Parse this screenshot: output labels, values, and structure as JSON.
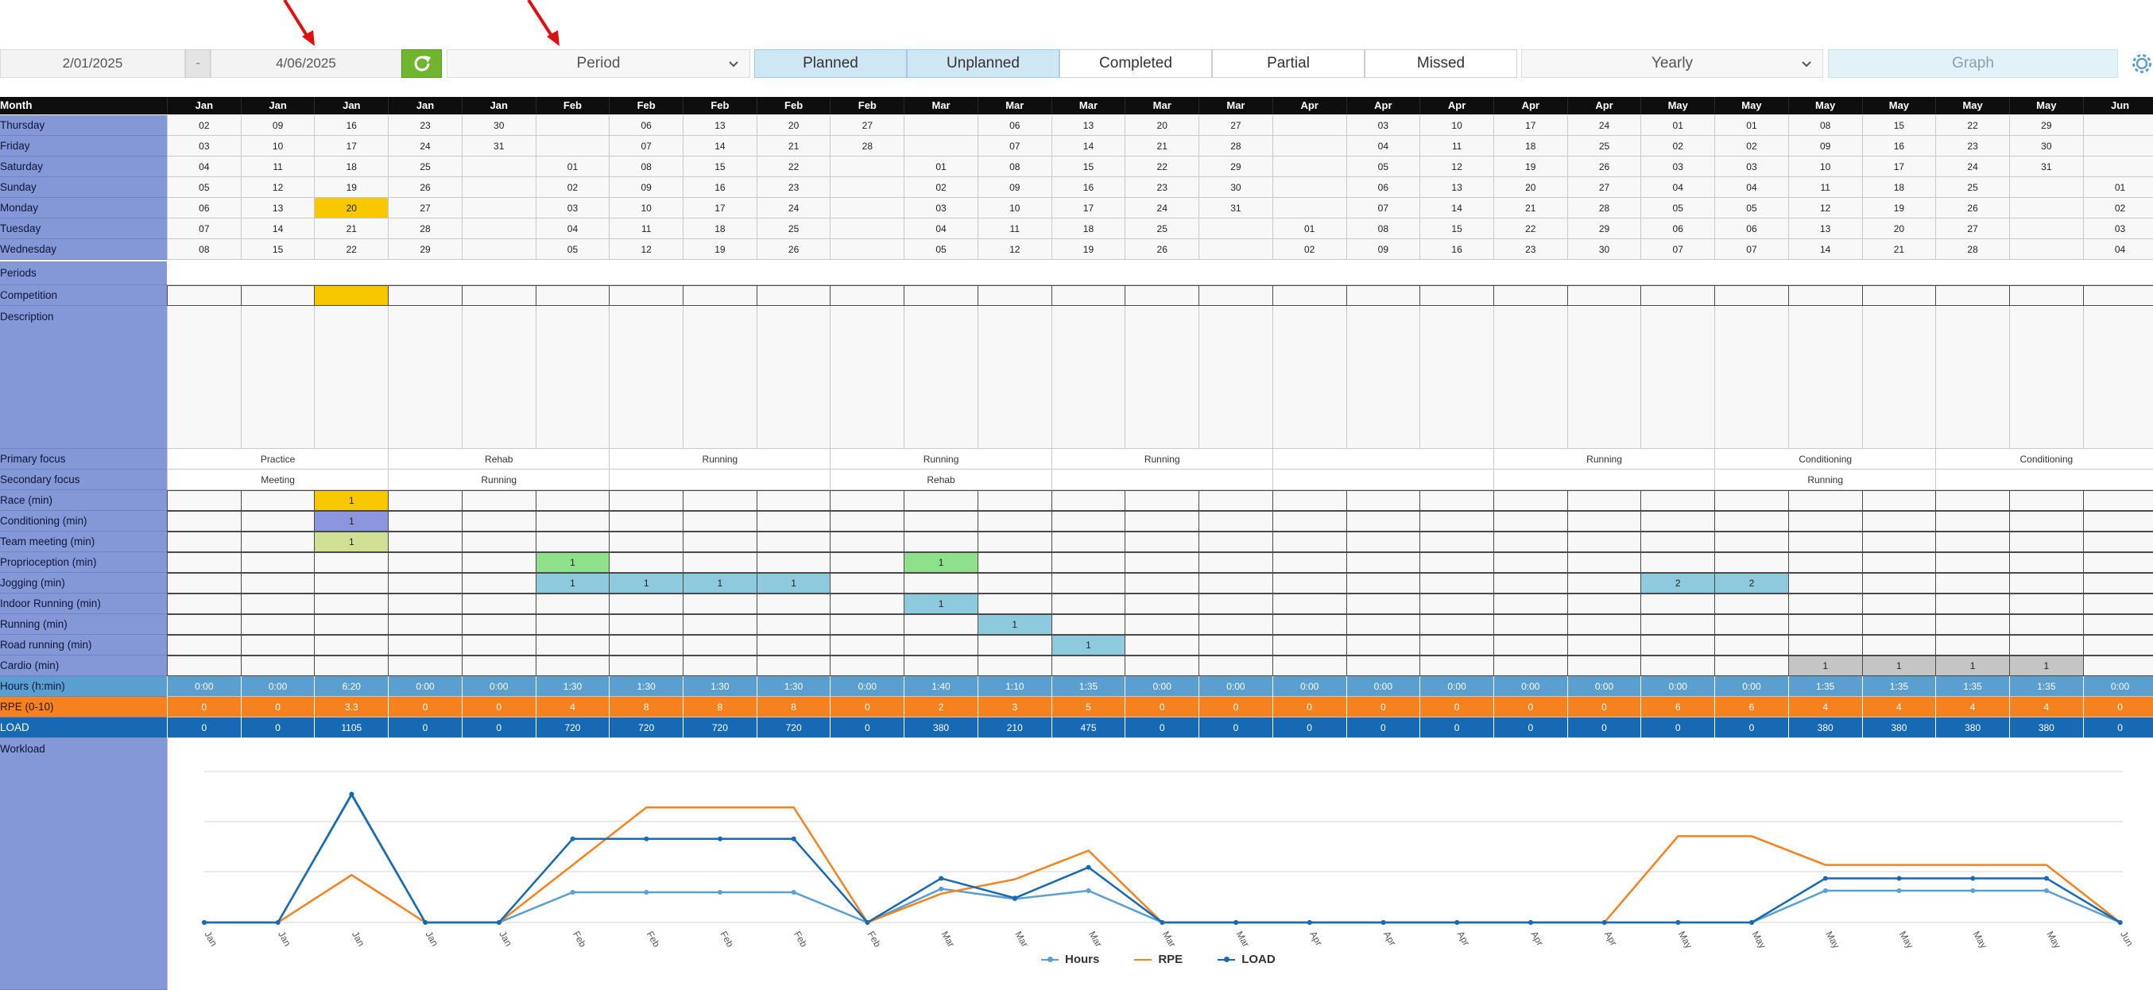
{
  "toolbar": {
    "start_date": "2/01/2025",
    "separator": "-",
    "end_date": "4/06/2025",
    "period_select": "Period",
    "filters": [
      {
        "label": "Planned",
        "active": true
      },
      {
        "label": "Unplanned",
        "active": true
      },
      {
        "label": "Completed",
        "active": false
      },
      {
        "label": "Partial",
        "active": false
      },
      {
        "label": "Missed",
        "active": false
      }
    ],
    "view_select": "Yearly",
    "graph_button": "Graph",
    "icons": [
      "refresh-icon",
      "chevron-down-icon",
      "gear-icon",
      "red-arrow-annotation"
    ]
  },
  "grid": {
    "month_label": "Month",
    "months": [
      "Jan",
      "Jan",
      "Jan",
      "Jan",
      "Jan",
      "Feb",
      "Feb",
      "Feb",
      "Feb",
      "Feb",
      "Mar",
      "Mar",
      "Mar",
      "Mar",
      "Mar",
      "Apr",
      "Apr",
      "Apr",
      "Apr",
      "Apr",
      "May",
      "May",
      "May",
      "May",
      "May",
      "May",
      "Jun"
    ],
    "day_rows": [
      {
        "label": "Thursday",
        "values": [
          "02",
          "09",
          "16",
          "23",
          "30",
          "",
          "06",
          "13",
          "20",
          "27",
          "",
          "06",
          "13",
          "20",
          "27",
          "",
          "03",
          "10",
          "17",
          "24",
          "01",
          "01",
          "08",
          "15",
          "22",
          "29",
          ""
        ]
      },
      {
        "label": "Friday",
        "values": [
          "03",
          "10",
          "17",
          "24",
          "31",
          "",
          "07",
          "14",
          "21",
          "28",
          "",
          "07",
          "14",
          "21",
          "28",
          "",
          "04",
          "11",
          "18",
          "25",
          "02",
          "02",
          "09",
          "16",
          "23",
          "30",
          ""
        ]
      },
      {
        "label": "Saturday",
        "values": [
          "04",
          "11",
          "18",
          "25",
          "",
          "01",
          "08",
          "15",
          "22",
          "",
          "01",
          "08",
          "15",
          "22",
          "29",
          "",
          "05",
          "12",
          "19",
          "26",
          "03",
          "03",
          "10",
          "17",
          "24",
          "31",
          ""
        ]
      },
      {
        "label": "Sunday",
        "values": [
          "05",
          "12",
          "19",
          "26",
          "",
          "02",
          "09",
          "16",
          "23",
          "",
          "02",
          "09",
          "16",
          "23",
          "30",
          "",
          "06",
          "13",
          "20",
          "27",
          "04",
          "04",
          "11",
          "18",
          "25",
          "",
          "01"
        ]
      },
      {
        "label": "Monday",
        "values": [
          "06",
          "13",
          "20",
          "27",
          "",
          "03",
          "10",
          "17",
          "24",
          "",
          "03",
          "10",
          "17",
          "24",
          "31",
          "",
          "07",
          "14",
          "21",
          "28",
          "05",
          "05",
          "12",
          "19",
          "26",
          "",
          "02"
        ]
      },
      {
        "label": "Tuesday",
        "values": [
          "07",
          "14",
          "21",
          "28",
          "",
          "04",
          "11",
          "18",
          "25",
          "",
          "04",
          "11",
          "18",
          "25",
          "",
          "01",
          "08",
          "15",
          "22",
          "29",
          "06",
          "06",
          "13",
          "20",
          "27",
          "",
          "03"
        ]
      },
      {
        "label": "Wednesday",
        "values": [
          "08",
          "15",
          "22",
          "29",
          "",
          "05",
          "12",
          "19",
          "26",
          "",
          "05",
          "12",
          "19",
          "26",
          "",
          "02",
          "09",
          "16",
          "23",
          "30",
          "07",
          "07",
          "14",
          "21",
          "28",
          "",
          "04"
        ]
      }
    ],
    "periods_label": "Periods",
    "competition_label": "Competition",
    "description_label": "Description",
    "primary_focus_label": "Primary focus",
    "primary_focus": [
      {
        "start": 0,
        "span": 3,
        "text": "Practice"
      },
      {
        "start": 3,
        "span": 3,
        "text": "Rehab"
      },
      {
        "start": 6,
        "span": 3,
        "text": "Running"
      },
      {
        "start": 9,
        "span": 3,
        "text": "Running"
      },
      {
        "start": 12,
        "span": 3,
        "text": "Running"
      },
      {
        "start": 15,
        "span": 3,
        "text": ""
      },
      {
        "start": 18,
        "span": 3,
        "text": "Running"
      },
      {
        "start": 21,
        "span": 3,
        "text": "Conditioning"
      },
      {
        "start": 24,
        "span": 3,
        "text": "Conditioning"
      }
    ],
    "secondary_focus_label": "Secondary focus",
    "secondary_focus": [
      {
        "start": 0,
        "span": 3,
        "text": "Meeting"
      },
      {
        "start": 3,
        "span": 3,
        "text": "Running"
      },
      {
        "start": 6,
        "span": 3,
        "text": ""
      },
      {
        "start": 9,
        "span": 3,
        "text": "Rehab"
      },
      {
        "start": 12,
        "span": 3,
        "text": ""
      },
      {
        "start": 15,
        "span": 3,
        "text": ""
      },
      {
        "start": 18,
        "span": 3,
        "text": ""
      },
      {
        "start": 21,
        "span": 3,
        "text": "Running"
      },
      {
        "start": 24,
        "span": 3,
        "text": ""
      }
    ],
    "activity_rows": [
      {
        "label": "Race (min)",
        "values": [
          "",
          "",
          "1",
          "",
          "",
          "",
          "",
          "",
          "",
          "",
          "",
          "",
          "",
          "",
          "",
          "",
          "",
          "",
          "",
          "",
          "",
          "",
          "",
          "",
          "",
          "",
          ""
        ],
        "color": "#f7c800"
      },
      {
        "label": "Conditioning (min)",
        "values": [
          "",
          "",
          "1",
          "",
          "",
          "",
          "",
          "",
          "",
          "",
          "",
          "",
          "",
          "",
          "",
          "",
          "",
          "",
          "",
          "",
          "",
          "",
          "",
          "",
          "",
          "",
          ""
        ],
        "color": "#8c96dc"
      },
      {
        "label": "Team meeting (min)",
        "values": [
          "",
          "",
          "1",
          "",
          "",
          "",
          "",
          "",
          "",
          "",
          "",
          "",
          "",
          "",
          "",
          "",
          "",
          "",
          "",
          "",
          "",
          "",
          "",
          "",
          "",
          "",
          ""
        ],
        "color": "#d1df94"
      },
      {
        "label": "Proprioception (min)",
        "values": [
          "",
          "",
          "",
          "",
          "",
          "1",
          "",
          "",
          "",
          "",
          "1",
          "",
          "",
          "",
          "",
          "",
          "",
          "",
          "",
          "",
          "",
          "",
          "",
          "",
          "",
          "",
          ""
        ],
        "color": "#8fe08a"
      },
      {
        "label": "Jogging (min)",
        "values": [
          "",
          "",
          "",
          "",
          "",
          "1",
          "1",
          "1",
          "1",
          "",
          "",
          "",
          "",
          "",
          "",
          "",
          "",
          "",
          "",
          "",
          "2",
          "2",
          "",
          "",
          "",
          "",
          ""
        ],
        "color": "#8dcadd"
      },
      {
        "label": "Indoor Running (min)",
        "values": [
          "",
          "",
          "",
          "",
          "",
          "",
          "",
          "",
          "",
          "",
          "1",
          "",
          "",
          "",
          "",
          "",
          "",
          "",
          "",
          "",
          "",
          "",
          "",
          "",
          "",
          "",
          ""
        ],
        "color": "#8dcadd"
      },
      {
        "label": "Running (min)",
        "values": [
          "",
          "",
          "",
          "",
          "",
          "",
          "",
          "",
          "",
          "",
          "",
          "1",
          "",
          "",
          "",
          "",
          "",
          "",
          "",
          "",
          "",
          "",
          "",
          "",
          "",
          "",
          ""
        ],
        "color": "#8dcadd"
      },
      {
        "label": "Road running (min)",
        "values": [
          "",
          "",
          "",
          "",
          "",
          "",
          "",
          "",
          "",
          "",
          "",
          "",
          "1",
          "",
          "",
          "",
          "",
          "",
          "",
          "",
          "",
          "",
          "",
          "",
          "",
          "",
          ""
        ],
        "color": "#8dcadd"
      },
      {
        "label": "Cardio (min)",
        "values": [
          "",
          "",
          "",
          "",
          "",
          "",
          "",
          "",
          "",
          "",
          "",
          "",
          "",
          "",
          "",
          "",
          "",
          "",
          "",
          "",
          "",
          "",
          "1",
          "1",
          "1",
          "1",
          ""
        ],
        "color": "#c5c5c5"
      }
    ],
    "hours_label": "Hours (h:min)",
    "hours": [
      "0:00",
      "0:00",
      "6:20",
      "0:00",
      "0:00",
      "1:30",
      "1:30",
      "1:30",
      "1:30",
      "0:00",
      "1:40",
      "1:10",
      "1:35",
      "0:00",
      "0:00",
      "0:00",
      "0:00",
      "0:00",
      "0:00",
      "0:00",
      "0:00",
      "0:00",
      "1:35",
      "1:35",
      "1:35",
      "1:35",
      "0:00"
    ],
    "rpe_label": "RPE (0-10)",
    "rpe": [
      "0",
      "0",
      "3.3",
      "0",
      "0",
      "4",
      "8",
      "8",
      "8",
      "0",
      "2",
      "3",
      "5",
      "0",
      "0",
      "0",
      "0",
      "0",
      "0",
      "0",
      "6",
      "6",
      "4",
      "4",
      "4",
      "4",
      "0"
    ],
    "load_label": "LOAD",
    "load": [
      "0",
      "0",
      "1105",
      "0",
      "0",
      "720",
      "720",
      "720",
      "720",
      "0",
      "380",
      "210",
      "475",
      "0",
      "0",
      "0",
      "0",
      "0",
      "0",
      "0",
      "0",
      "0",
      "380",
      "380",
      "380",
      "380",
      "0"
    ],
    "workload_label": "Workload"
  },
  "chart_data": {
    "type": "line",
    "categories": [
      "Jan",
      "Jan",
      "Jan",
      "Jan",
      "Jan",
      "Feb",
      "Feb",
      "Feb",
      "Feb",
      "Feb",
      "Mar",
      "Mar",
      "Mar",
      "Mar",
      "Mar",
      "Apr",
      "Apr",
      "Apr",
      "Apr",
      "Apr",
      "May",
      "May",
      "May",
      "May",
      "May",
      "May",
      "Jun"
    ],
    "series": [
      {
        "name": "Hours",
        "color": "#5b9fd1",
        "values": [
          0,
          0,
          6.33,
          0,
          0,
          1.5,
          1.5,
          1.5,
          1.5,
          0,
          1.67,
          1.17,
          1.58,
          0,
          0,
          0,
          0,
          0,
          0,
          0,
          0,
          0,
          1.58,
          1.58,
          1.58,
          1.58,
          0
        ]
      },
      {
        "name": "RPE",
        "color": "#f5821f",
        "values": [
          0,
          0,
          3.3,
          0,
          0,
          4,
          8,
          8,
          8,
          0,
          2,
          3,
          5,
          0,
          0,
          0,
          0,
          0,
          0,
          0,
          6,
          6,
          4,
          4,
          4,
          4,
          0
        ]
      },
      {
        "name": "LOAD",
        "color": "#1769b4",
        "values": [
          0,
          0,
          1105,
          0,
          0,
          720,
          720,
          720,
          720,
          0,
          380,
          210,
          475,
          0,
          0,
          0,
          0,
          0,
          0,
          0,
          0,
          0,
          380,
          380,
          380,
          380,
          0
        ]
      }
    ],
    "legend_position": "bottom-center",
    "grid": true
  }
}
